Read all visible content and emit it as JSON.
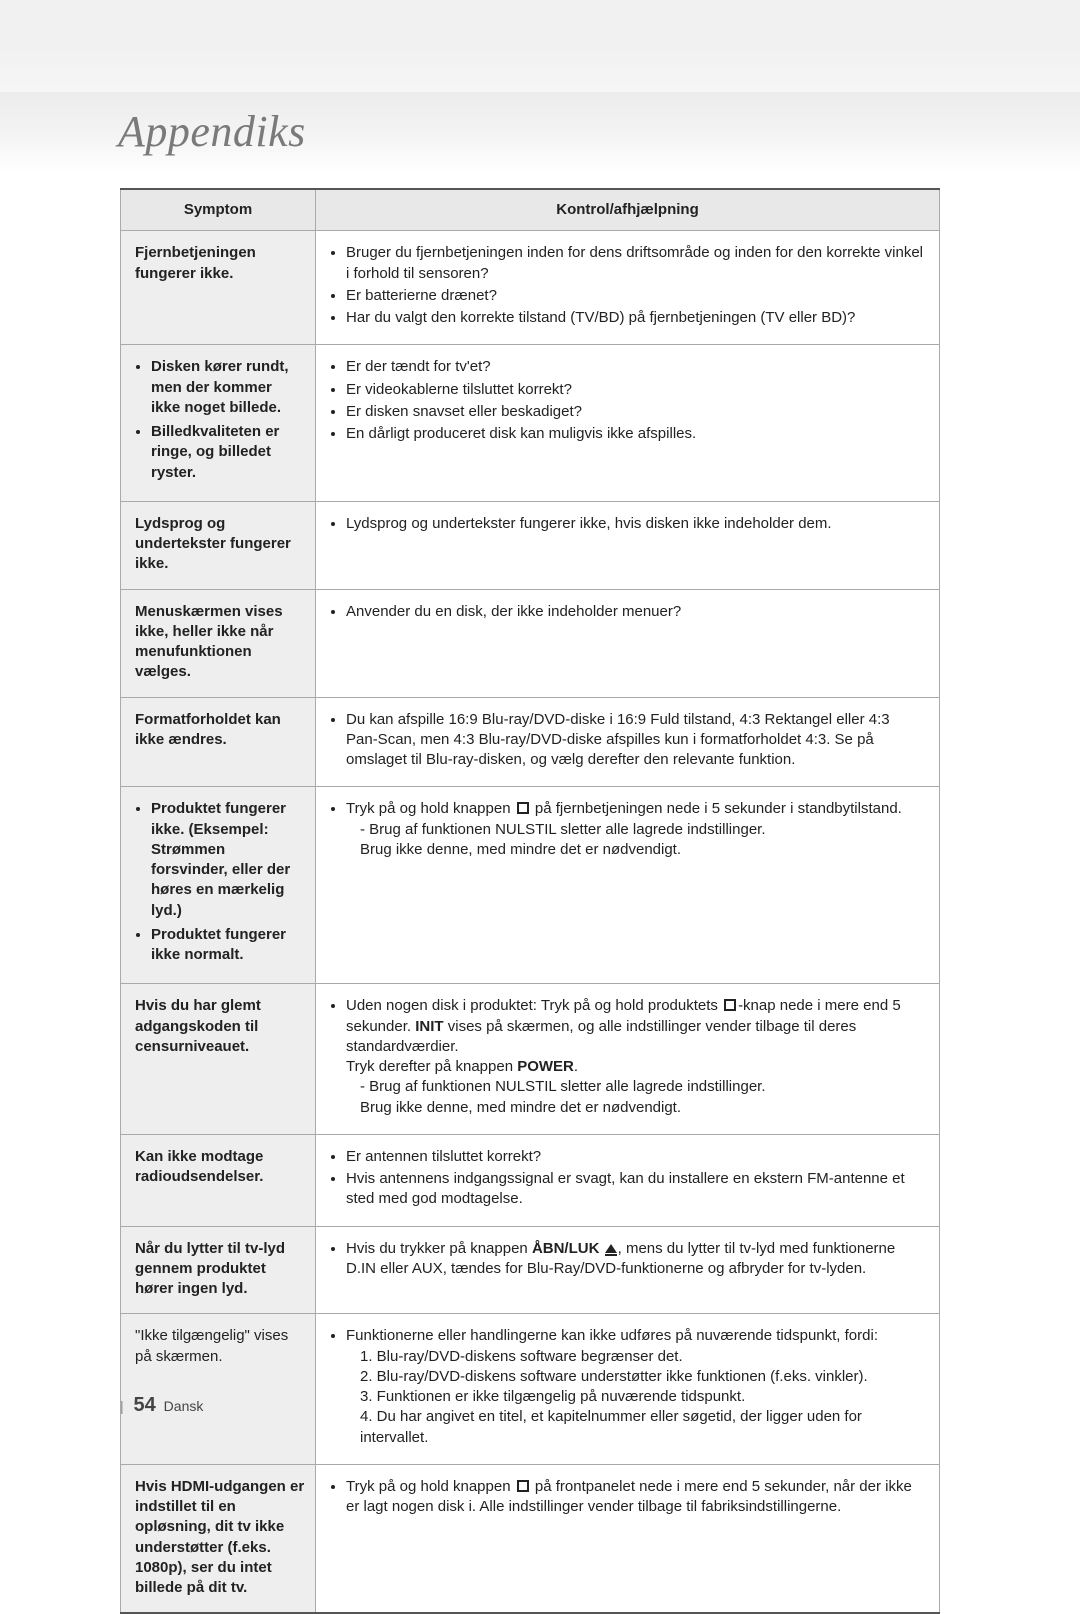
{
  "page": {
    "title": "Appendiks",
    "number": "54",
    "language": "Dansk",
    "colors": {
      "heading_text": "#7a7a7a",
      "table_header_bg": "#e8e8e8",
      "symptom_bg": "#eeeeee",
      "border": "#aaaaaa",
      "outer_border": "#555555",
      "body_text": "#222222",
      "page_bg": "#ffffff",
      "band_bg": "#ececec"
    },
    "font_sizes": {
      "heading": 44,
      "body": 15,
      "footer_num": 20,
      "footer": 14
    }
  },
  "table": {
    "headers": {
      "symptom": "Symptom",
      "remedy": "Kontrol/afhjælpning"
    },
    "rows": [
      {
        "symptom_bold": "Fjernbetjeningen fungerer ikke.",
        "remedy_bullets": [
          "Bruger du fjernbetjeningen inden for dens driftsområde og inden for den korrekte vinkel i forhold til sensoren?",
          "Er batterierne drænet?",
          "Har du valgt den korrekte tilstand (TV/BD) på fjernbetjeningen (TV eller BD)?"
        ]
      },
      {
        "symptom_bullets": [
          "Disken kører rundt, men der kommer ikke noget billede.",
          "Billedkvaliteten er ringe, og billedet ryster."
        ],
        "remedy_bullets": [
          "Er der tændt for tv'et?",
          "Er videokablerne tilsluttet korrekt?",
          "Er disken snavset eller beskadiget?",
          "En dårligt produceret disk kan muligvis ikke afspilles."
        ]
      },
      {
        "symptom_bold": "Lydsprog og undertekster fungerer ikke.",
        "remedy_bullets": [
          "Lydsprog og undertekster fungerer ikke, hvis disken ikke indeholder dem."
        ]
      },
      {
        "symptom_bold": "Menuskærmen vises ikke, heller ikke når menufunktionen vælges.",
        "remedy_bullets": [
          "Anvender du en disk, der ikke indeholder menuer?"
        ]
      },
      {
        "symptom_bold": "Formatforholdet kan ikke ændres.",
        "remedy_bullets": [
          "Du kan afspille 16:9 Blu-ray/DVD-diske i 16:9 Fuld tilstand, 4:3 Rektangel eller 4:3 Pan-Scan, men 4:3 Blu-ray/DVD-diske afspilles kun i formatforholdet 4:3. Se på omslaget til Blu-ray-disken, og vælg derefter den relevante funktion."
        ]
      },
      {
        "symptom_bullets": [
          "Produktet fungerer ikke. (Eksempel: Strømmen forsvinder, eller der høres en mærkelig lyd.)",
          "Produktet fungerer ikke normalt."
        ],
        "remedy_special": "stop_standby",
        "remedy_text": {
          "lead_a": "Tryk på og hold knappen ",
          "lead_b": " på fjernbetjeningen nede i 5 sekunder i standbytilstand.",
          "dash1": "Brug af funktionen NULSTIL sletter alle lagrede indstillinger.",
          "sub1": "Brug ikke denne, med mindre det er nødvendigt."
        }
      },
      {
        "symptom_bold": "Hvis du har glemt adgangskoden til censurniveauet.",
        "remedy_special": "init_power",
        "remedy_text": {
          "lead_a": "Uden nogen disk i produktet: Tryk på og hold produktets ",
          "lead_b": "-knap nede i mere end 5 sekunder. ",
          "init": "INIT",
          "after_init": " vises på skærmen, og alle indstillinger vender tilbage til deres standardværdier.",
          "press": "Tryk derefter på knappen ",
          "power": "POWER",
          "dash1": "Brug af funktionen NULSTIL sletter alle lagrede indstillinger.",
          "sub1": "Brug ikke denne, med mindre det er nødvendigt."
        }
      },
      {
        "symptom_bold": "Kan ikke modtage radioudsendelser.",
        "remedy_bullets": [
          "Er antennen tilsluttet korrekt?",
          "Hvis antennens indgangssignal er svagt, kan du installere en ekstern FM-antenne et sted med god modtagelse."
        ]
      },
      {
        "symptom_bold": "Når du lytter til tv-lyd gennem produktet hører ingen lyd.",
        "remedy_special": "eject",
        "remedy_text": {
          "lead_a": "Hvis du trykker på knappen ",
          "open": "ÅBN/LUK",
          "lead_b": ", mens du lytter til tv-lyd med funktionerne D.IN eller AUX, tændes for Blu-Ray/DVD-funktionerne og afbryder for tv-lyden."
        }
      },
      {
        "symptom_plain": "\"Ikke tilgængelig\" vises på skærmen.",
        "remedy_special": "numbered",
        "remedy_text": {
          "lead": "Funktionerne eller handlingerne kan ikke udføres på nuværende tidspunkt, fordi:",
          "n1": "1. Blu-ray/DVD-diskens software begrænser det.",
          "n2": "2. Blu-ray/DVD-diskens software understøtter ikke funktionen (f.eks. vinkler).",
          "n3": "3. Funktionen er ikke tilgængelig på nuværende tidspunkt.",
          "n4": "4. Du har angivet en titel, et kapitelnummer eller søgetid, der ligger uden for intervallet."
        }
      },
      {
        "symptom_bold": "Hvis HDMI-udgangen er indstillet til en opløsning, dit tv ikke understøtter (f.eks. 1080p), ser du intet billede på dit tv.",
        "remedy_special": "stop_front",
        "remedy_text": {
          "lead_a": "Tryk på og hold knappen ",
          "lead_b": " på frontpanelet nede i mere end 5 sekunder, når der ikke er lagt nogen disk i. Alle indstillinger vender tilbage til fabriksindstillingerne."
        }
      }
    ]
  }
}
